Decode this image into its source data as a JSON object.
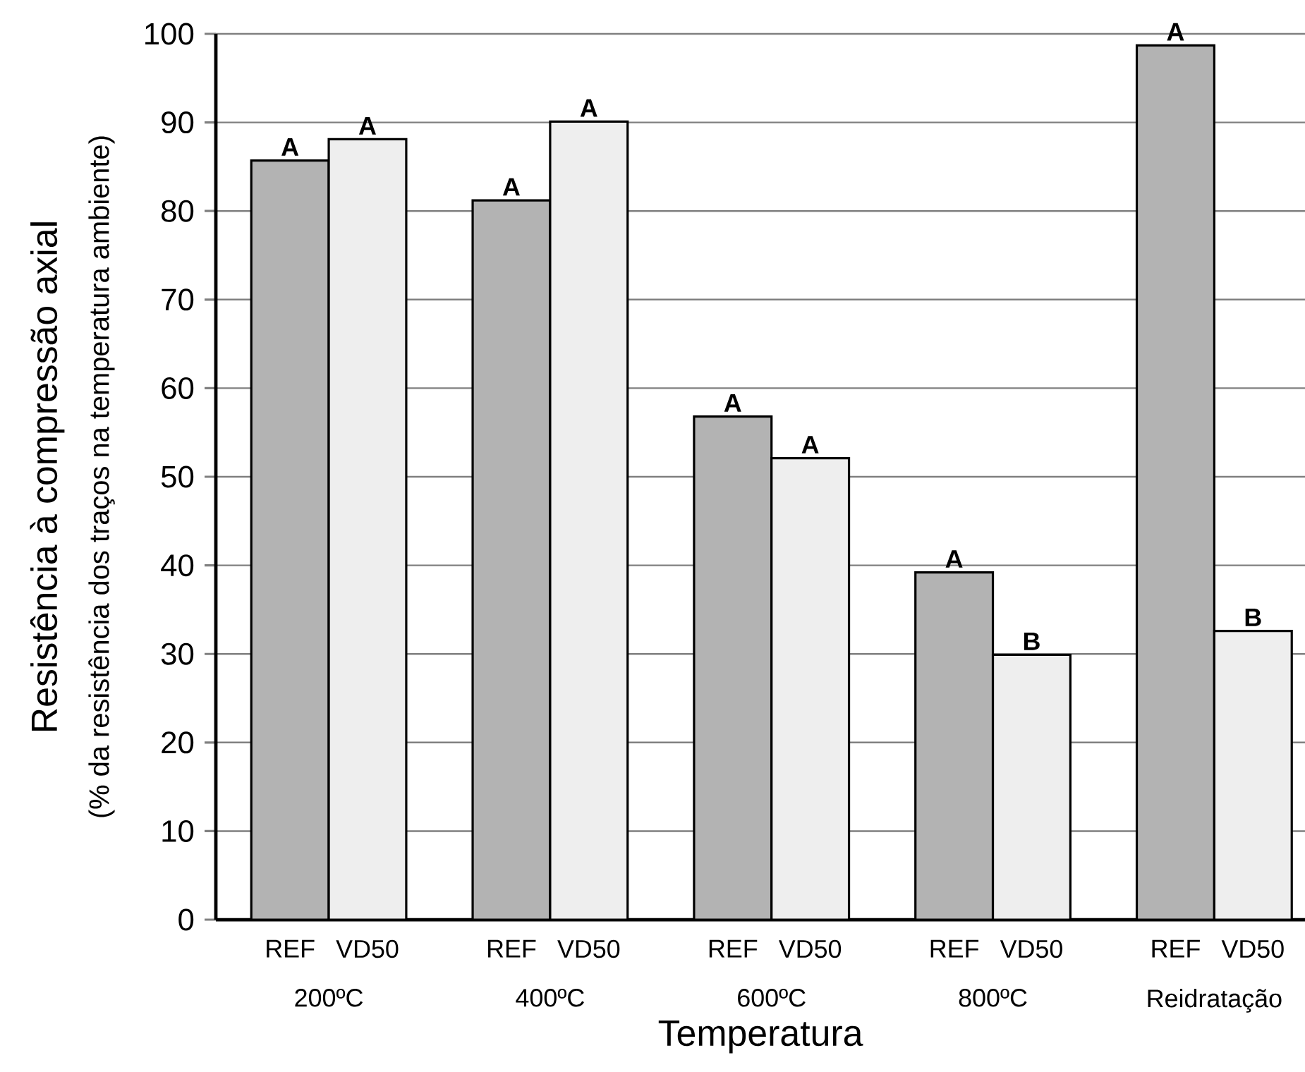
{
  "chart_data": {
    "type": "bar",
    "categories": [
      "200ºC",
      "400ºC",
      "600ºC",
      "800ºC",
      "Reidratação"
    ],
    "series": [
      {
        "name": "REF",
        "color": "#b3b3b3",
        "values": [
          85.7,
          81.2,
          56.8,
          39.2,
          98.7
        ]
      },
      {
        "name": "VD50",
        "color": "#eeeeee",
        "values": [
          88.1,
          90.1,
          52.1,
          29.9,
          32.6
        ]
      }
    ],
    "xlabel": "Temperatura",
    "ylabel": "Resistência à compressão axial",
    "annotations": [
      "(% da resistência dos traços na temperatura ambiente)",
      {
        "text": "A",
        "x": "200ºC",
        "y": 85.7
      },
      {
        "text": "A",
        "x": "200ºC",
        "y": 88.1
      },
      {
        "text": "A",
        "x": "400ºC",
        "y": 81.2
      },
      {
        "text": "A",
        "x": "400ºC",
        "y": 90.1
      },
      {
        "text": "A",
        "x": "600ºC",
        "y": 56.8
      },
      {
        "text": "A",
        "x": "600ºC",
        "y": 52.1
      },
      {
        "text": "A",
        "x": "800ºC",
        "y": 39.2
      },
      {
        "text": "B",
        "x": "800ºC",
        "y": 29.9
      },
      {
        "text": "A",
        "x": "Reidratação",
        "y": 98.7
      },
      {
        "text": "B",
        "x": "Reidratação",
        "y": 32.6
      }
    ],
    "legend": "bottom",
    "ylim": [
      0,
      100
    ],
    "yticks": [
      0,
      10,
      20,
      30,
      40,
      50,
      60,
      70,
      80,
      90,
      100
    ],
    "grid": "y"
  }
}
